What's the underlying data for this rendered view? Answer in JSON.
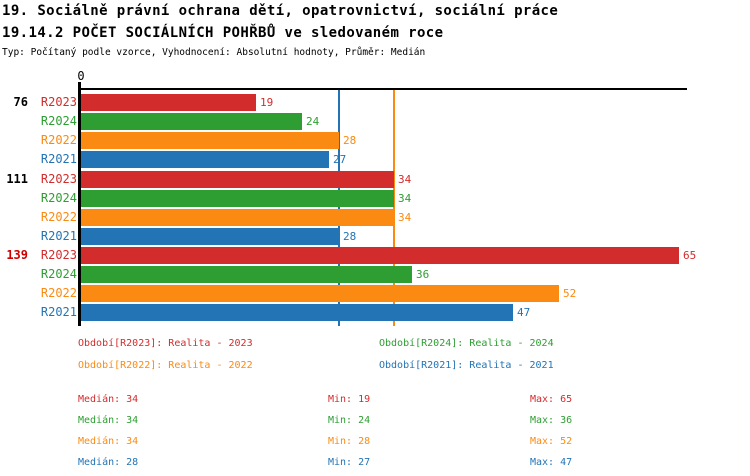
{
  "header": {
    "title_line1": "19. Sociálně právní ochrana dětí, opatrovnictví, sociální práce",
    "title_line2": "19.14.2 POČET SOCIÁLNÍCH POHŘBŮ ve sledovaném roce",
    "subtitle": "Typ: Počítaný podle vzorce, Vyhodnocení: Absolutní hodnoty, Průměr: Medián"
  },
  "colors": {
    "R2023": "#d22c2c",
    "R2024": "#2e9e32",
    "R2022": "#fb8a12",
    "R2021": "#2374b5",
    "axis": "#000000",
    "highlight_group_label": "#cc0000"
  },
  "chart_data": {
    "type": "bar",
    "orientation": "horizontal",
    "origin_label": "0",
    "xlabel": "",
    "ylabel": "",
    "xlim": [
      0,
      66
    ],
    "grid": false,
    "series_order": [
      "R2023",
      "R2024",
      "R2022",
      "R2021"
    ],
    "groups": [
      {
        "label": "76",
        "label_color": "#000000",
        "bars": [
          {
            "series": "R2023",
            "value": 19
          },
          {
            "series": "R2024",
            "value": 24
          },
          {
            "series": "R2022",
            "value": 28
          },
          {
            "series": "R2021",
            "value": 27
          }
        ]
      },
      {
        "label": "111",
        "label_color": "#000000",
        "bars": [
          {
            "series": "R2023",
            "value": 34
          },
          {
            "series": "R2024",
            "value": 34
          },
          {
            "series": "R2022",
            "value": 34
          },
          {
            "series": "R2021",
            "value": 28
          }
        ]
      },
      {
        "label": "139",
        "label_color": "#cc0000",
        "bars": [
          {
            "series": "R2023",
            "value": 65
          },
          {
            "series": "R2024",
            "value": 36
          },
          {
            "series": "R2022",
            "value": 52
          },
          {
            "series": "R2021",
            "value": 47
          }
        ]
      }
    ],
    "reference_lines": [
      {
        "series": "R2021",
        "value": 28
      },
      {
        "series": "R2022",
        "value": 34
      }
    ],
    "legend": [
      {
        "series": "R2023",
        "label": "Období[R2023]: Realita - 2023"
      },
      {
        "series": "R2024",
        "label": "Období[R2024]: Realita - 2024"
      },
      {
        "series": "R2022",
        "label": "Období[R2022]: Realita - 2022"
      },
      {
        "series": "R2021",
        "label": "Období[R2021]: Realita - 2021"
      }
    ],
    "stat_labels": {
      "median": "Medián",
      "min": "Min",
      "max": "Max"
    },
    "stats": [
      {
        "series": "R2023",
        "median": 34,
        "min": 19,
        "max": 65
      },
      {
        "series": "R2024",
        "median": 34,
        "min": 24,
        "max": 36
      },
      {
        "series": "R2022",
        "median": 34,
        "min": 28,
        "max": 52
      },
      {
        "series": "R2021",
        "median": 28,
        "min": 27,
        "max": 47
      }
    ]
  }
}
